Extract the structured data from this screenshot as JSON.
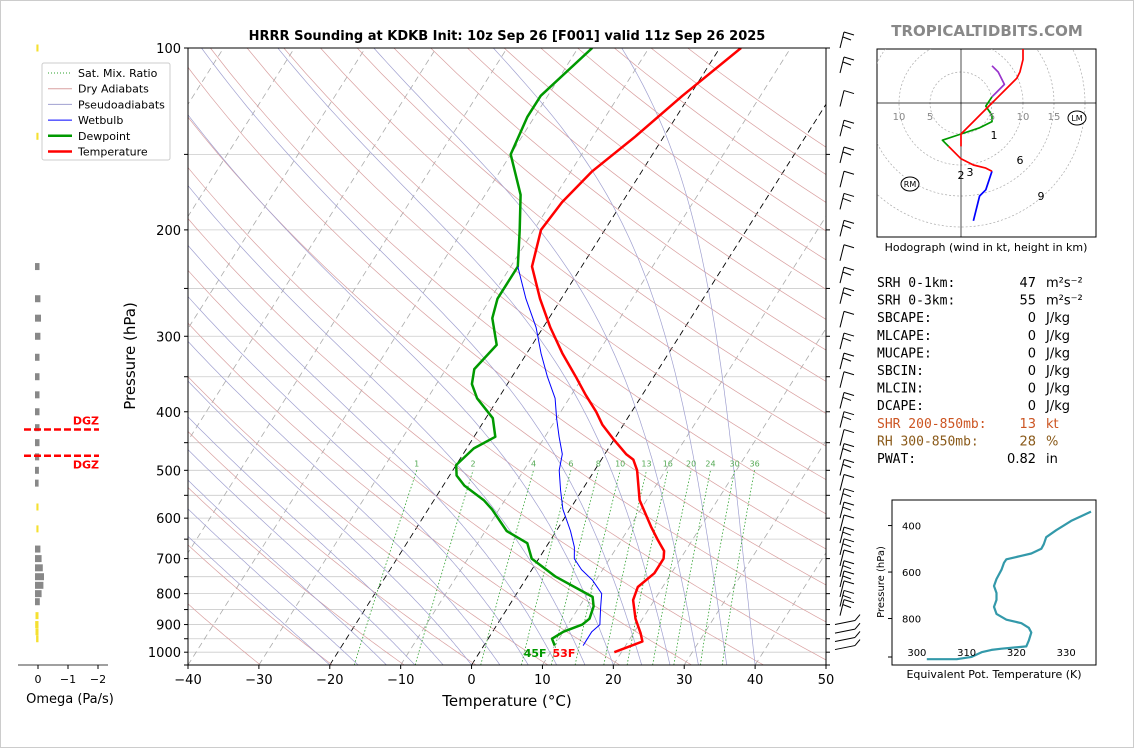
{
  "title": "HRRR Sounding at KDKB Init: 10z Sep 26 [F001] valid 11z Sep 26 2025",
  "watermark": "TROPICALTIDBITS.COM",
  "chart_data": [
    {
      "type": "line",
      "name": "skew-t",
      "xlabel": "Temperature (°C)",
      "ylabel": "Pressure (hPa)",
      "xlim": [
        -40,
        50
      ],
      "ylim": [
        1050,
        100
      ],
      "y_scale": "log",
      "x_ticks": [
        -40,
        -30,
        -20,
        -10,
        0,
        10,
        20,
        30,
        40,
        50
      ],
      "y_ticks": [
        100,
        200,
        300,
        400,
        500,
        600,
        700,
        800,
        900,
        1000
      ],
      "y_gridlines": [
        100,
        150,
        200,
        250,
        300,
        350,
        400,
        450,
        500,
        550,
        600,
        650,
        700,
        750,
        800,
        850,
        900,
        950,
        1000,
        1050
      ],
      "grid": true,
      "legend": {
        "position": "top-left",
        "items": [
          {
            "label": "Sat. Mix. Ratio",
            "color": "#2ca02c",
            "style": "dotted"
          },
          {
            "label": "Dry Adiabats",
            "color": "#d9a0a0",
            "style": "solid"
          },
          {
            "label": "Pseudoadiabats",
            "color": "#a0a0d0",
            "style": "solid"
          },
          {
            "label": "Wetbulb",
            "color": "#0000ff",
            "style": "solid"
          },
          {
            "label": "Dewpoint",
            "color": "#009900",
            "style": "solid"
          },
          {
            "label": "Temperature",
            "color": "#ff0000",
            "style": "solid"
          }
        ]
      },
      "mixing_ratio_labels": [
        1,
        2,
        4,
        6,
        8,
        10,
        13,
        16,
        20,
        24,
        30,
        36
      ],
      "series": [
        {
          "name": "Temperature",
          "color": "#ff0000",
          "points": [
            [
              19,
              1000
            ],
            [
              22,
              960
            ],
            [
              21,
              930
            ],
            [
              19,
              880
            ],
            [
              17,
              820
            ],
            [
              16.5,
              780
            ],
            [
              17.6,
              740
            ],
            [
              17.6,
              700
            ],
            [
              17,
              680
            ],
            [
              15,
              650
            ],
            [
              13,
              620
            ],
            [
              9,
              560
            ],
            [
              6,
              500
            ],
            [
              4.5,
              480
            ],
            [
              3,
              470
            ],
            [
              0,
              445
            ],
            [
              -3,
              420
            ],
            [
              -5,
              400
            ],
            [
              -8,
              375
            ],
            [
              -11,
              350
            ],
            [
              -15,
              320
            ],
            [
              -19,
              290
            ],
            [
              -23,
              260
            ],
            [
              -27,
              230
            ],
            [
              -29,
              200
            ],
            [
              -28.5,
              180
            ],
            [
              -27,
              160
            ],
            [
              -24,
              140
            ],
            [
              -21,
              120
            ],
            [
              -17,
              100
            ]
          ]
        },
        {
          "name": "Dewpoint",
          "color": "#009900",
          "points": [
            [
              10,
              975
            ],
            [
              9,
              950
            ],
            [
              10,
              925
            ],
            [
              12,
              900
            ],
            [
              12.5,
              880
            ],
            [
              12,
              840
            ],
            [
              11,
              810
            ],
            [
              4,
              750
            ],
            [
              -1,
              700
            ],
            [
              -3,
              660
            ],
            [
              -7,
              630
            ],
            [
              -11,
              580
            ],
            [
              -13,
              560
            ],
            [
              -17,
              530
            ],
            [
              -19,
              510
            ],
            [
              -20,
              490
            ],
            [
              -19,
              460
            ],
            [
              -17,
              440
            ],
            [
              -19,
              410
            ],
            [
              -23,
              380
            ],
            [
              -25,
              360
            ],
            [
              -26,
              340
            ],
            [
              -25,
              310
            ],
            [
              -28,
              280
            ],
            [
              -29,
              260
            ],
            [
              -29,
              230
            ],
            [
              -32,
              200
            ],
            [
              -35,
              175
            ],
            [
              -40,
              150
            ],
            [
              -41,
              130
            ],
            [
              -41,
              120
            ],
            [
              -38,
              100
            ]
          ]
        },
        {
          "name": "Wetbulb",
          "color": "#0000ff",
          "points": [
            [
              14,
              975
            ],
            [
              14,
              950
            ],
            [
              14,
              925
            ],
            [
              14.5,
              900
            ],
            [
              14,
              880
            ],
            [
              13,
              840
            ],
            [
              12,
              800
            ],
            [
              9.5,
              760
            ],
            [
              7,
              730
            ],
            [
              5,
              700
            ],
            [
              4,
              670
            ],
            [
              2,
              630
            ],
            [
              -1,
              580
            ],
            [
              -3,
              540
            ],
            [
              -5,
              500
            ],
            [
              -6,
              470
            ],
            [
              -8,
              440
            ],
            [
              -10,
              410
            ],
            [
              -12,
              380
            ],
            [
              -15,
              350
            ],
            [
              -18,
              320
            ],
            [
              -21,
              290
            ],
            [
              -25,
              260
            ],
            [
              -29,
              230
            ]
          ]
        }
      ],
      "surface_labels": {
        "dewpoint": "45F",
        "temperature": "53F"
      }
    },
    {
      "type": "line",
      "name": "omega",
      "xlabel": "Omega (Pa/s)",
      "x_ticks": [
        "0",
        "−1",
        "−2"
      ],
      "xlim": [
        0.2,
        -2
      ],
      "dgz": {
        "label": "DGZ",
        "pressures": [
          428,
          473
        ]
      },
      "bars": [
        {
          "p": 230,
          "v": -0.05
        },
        {
          "p": 260,
          "v": -0.08
        },
        {
          "p": 280,
          "v": -0.1
        },
        {
          "p": 300,
          "v": -0.08
        },
        {
          "p": 325,
          "v": -0.05
        },
        {
          "p": 350,
          "v": -0.05
        },
        {
          "p": 375,
          "v": -0.05
        },
        {
          "p": 400,
          "v": -0.05
        },
        {
          "p": 425,
          "v": -0.05
        },
        {
          "p": 450,
          "v": -0.05
        },
        {
          "p": 475,
          "v": -0.04
        },
        {
          "p": 500,
          "v": -0.03
        },
        {
          "p": 525,
          "v": -0.02
        },
        {
          "p": 675,
          "v": -0.08
        },
        {
          "p": 700,
          "v": -0.12
        },
        {
          "p": 725,
          "v": -0.16
        },
        {
          "p": 750,
          "v": -0.2
        },
        {
          "p": 775,
          "v": -0.18
        },
        {
          "p": 800,
          "v": -0.12
        },
        {
          "p": 825,
          "v": -0.06
        }
      ],
      "positive_bars": [
        {
          "p": 100,
          "v": 0.02
        },
        {
          "p": 140,
          "v": 0.02
        },
        {
          "p": 575,
          "v": 0.02
        },
        {
          "p": 625,
          "v": 0.02
        },
        {
          "p": 870,
          "v": 0.05
        },
        {
          "p": 900,
          "v": 0.06
        },
        {
          "p": 925,
          "v": 0.05
        },
        {
          "p": 950,
          "v": 0.03
        }
      ]
    },
    {
      "type": "line",
      "name": "hodograph",
      "caption": "Hodograph (wind in kt, height in km)",
      "ring_labels": [
        "10",
        "5",
        "5",
        "10",
        "15"
      ],
      "markers": [
        "LM",
        "RM"
      ],
      "height_labels": [
        "1",
        "2",
        "3",
        "6",
        "9"
      ],
      "segments": [
        {
          "color": "#0000ff",
          "points": [
            [
              2,
              -19
            ],
            [
              3,
              -15
            ],
            [
              4,
              -14
            ],
            [
              5,
              -11
            ]
          ]
        },
        {
          "color": "#ff0000",
          "points": [
            [
              5,
              -11
            ],
            [
              4,
              -10.5
            ],
            [
              2,
              -10
            ],
            [
              0,
              -9
            ],
            [
              -2,
              -7
            ]
          ]
        },
        {
          "color": "#009900",
          "points": [
            [
              -2,
              -7
            ],
            [
              -3,
              -6
            ],
            [
              0,
              -5
            ],
            [
              3,
              -4
            ],
            [
              5,
              -3
            ],
            [
              5,
              -2
            ],
            [
              4,
              -0.5
            ],
            [
              5,
              1
            ]
          ]
        },
        {
          "color": "#9933cc",
          "points": [
            [
              5,
              1
            ],
            [
              6,
              2
            ],
            [
              7,
              3
            ],
            [
              6,
              5
            ],
            [
              5,
              6
            ]
          ]
        },
        {
          "color": "#ff0000",
          "points": [
            [
              0,
              -7
            ],
            [
              0,
              -5
            ],
            [
              2,
              -3
            ],
            [
              3,
              -2
            ],
            [
              5,
              0
            ],
            [
              6,
              1
            ],
            [
              7,
              2
            ],
            [
              9,
              4
            ],
            [
              9.5,
              5
            ],
            [
              10,
              7
            ],
            [
              10,
              9
            ],
            [
              9,
              12
            ],
            [
              7.5,
              14
            ],
            [
              4,
              10.5
            ]
          ]
        }
      ]
    },
    {
      "type": "line",
      "name": "theta-e",
      "xlabel": "Equivalent Pot. Temperature (K)",
      "ylabel": "Pressure (hPa)",
      "x_ticks": [
        300,
        310,
        320,
        330
      ],
      "y_ticks": [
        400,
        600,
        800
      ],
      "xlim": [
        295,
        336
      ],
      "ylim": [
        1000,
        290
      ],
      "color": "#3399aa",
      "points": [
        [
          302,
          975
        ],
        [
          308,
          975
        ],
        [
          311,
          965
        ],
        [
          313,
          945
        ],
        [
          315,
          935
        ],
        [
          317,
          930
        ],
        [
          322,
          920
        ],
        [
          322.5,
          895
        ],
        [
          323,
          860
        ],
        [
          322.5,
          840
        ],
        [
          321,
          820
        ],
        [
          318,
          805
        ],
        [
          316,
          780
        ],
        [
          315.5,
          750
        ],
        [
          316,
          720
        ],
        [
          316,
          690
        ],
        [
          315.5,
          660
        ],
        [
          316,
          630
        ],
        [
          317,
          590
        ],
        [
          317.5,
          560
        ],
        [
          318,
          545
        ],
        [
          321,
          530
        ],
        [
          323,
          520
        ],
        [
          325,
          500
        ],
        [
          325.5,
          480
        ],
        [
          326,
          450
        ],
        [
          328,
          420
        ],
        [
          329.5,
          400
        ],
        [
          331,
          380
        ],
        [
          333,
          360
        ],
        [
          335,
          340
        ]
      ]
    }
  ],
  "indices": [
    {
      "label": "SRH 0-1km:",
      "value": "47",
      "unit": "m²s⁻²",
      "color": "#000000"
    },
    {
      "label": "SRH 0-3km:",
      "value": "55",
      "unit": "m²s⁻²",
      "color": "#000000"
    },
    {
      "label": "SBCAPE:",
      "value": "0",
      "unit": "J/kg",
      "color": "#000000"
    },
    {
      "label": "MLCAPE:",
      "value": "0",
      "unit": "J/kg",
      "color": "#000000"
    },
    {
      "label": "MUCAPE:",
      "value": "0",
      "unit": "J/kg",
      "color": "#000000"
    },
    {
      "label": "SBCIN:",
      "value": "0",
      "unit": "J/kg",
      "color": "#000000"
    },
    {
      "label": "MLCIN:",
      "value": "0",
      "unit": "J/kg",
      "color": "#000000"
    },
    {
      "label": "DCAPE:",
      "value": "0",
      "unit": "J/kg",
      "color": "#000000"
    },
    {
      "label": "SHR 200-850mb:",
      "value": "13",
      "unit": "kt",
      "color": "#cc5522"
    },
    {
      "label": "RH 300-850mb:",
      "value": "28",
      "unit": "%",
      "color": "#8a5a1a"
    },
    {
      "label": "PWAT:",
      "value": "0.82",
      "unit": "in",
      "color": "#000000"
    }
  ],
  "colors": {
    "temperature": "#ff0000",
    "dewpoint": "#009900",
    "wetbulb": "#0000ff",
    "dry_adiabat": "#d9a0a0",
    "pseudoadiabat": "#a0a0d0",
    "mix_ratio": "#2ca02c",
    "theta_e": "#3399aa",
    "watermark": "#888888"
  }
}
